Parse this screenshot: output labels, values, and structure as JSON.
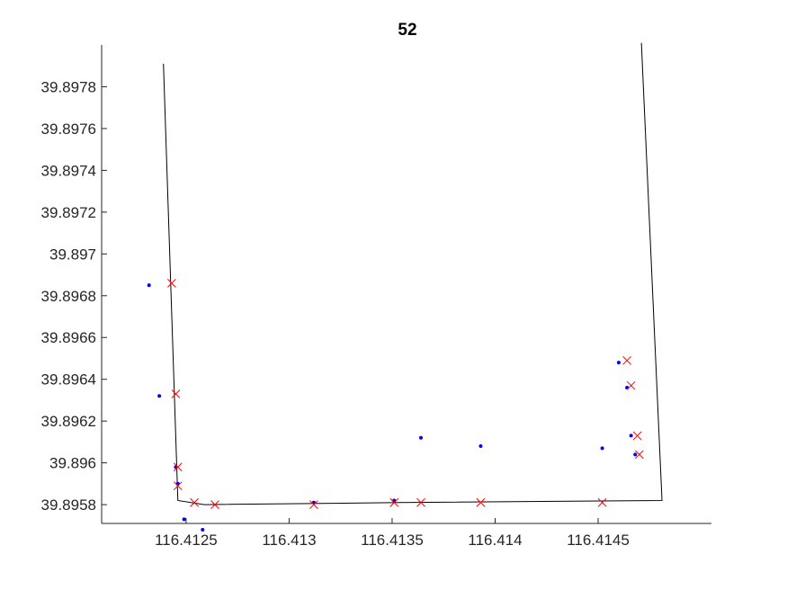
{
  "chart_data": {
    "type": "scatter",
    "title": "52",
    "xlabel": "",
    "ylabel": "",
    "xlim": [
      116.41209,
      116.41505
    ],
    "ylim": [
      39.89571,
      39.898
    ],
    "grid": false,
    "x_ticks": [
      116.4125,
      116.413,
      116.4135,
      116.414,
      116.4145
    ],
    "x_tick_labels": [
      "116.4125",
      "116.413",
      "116.4135",
      "116.414",
      "116.4145"
    ],
    "y_ticks": [
      39.8958,
      39.896,
      39.8962,
      39.8964,
      39.8966,
      39.8968,
      39.897,
      39.8972,
      39.8974,
      39.8976,
      39.8978
    ],
    "y_tick_labels": [
      "39.8958",
      "39.896",
      "39.8962",
      "39.8964",
      "39.8966",
      "39.8968",
      "39.897",
      "39.8972",
      "39.8974",
      "39.8976",
      "39.8978"
    ],
    "series": [
      {
        "kind": "line",
        "color": "#000000",
        "x": [
          116.41239,
          116.41246,
          116.41259,
          116.41354,
          116.41481,
          116.41471
        ],
        "y": [
          39.89791,
          39.89582,
          39.8958,
          39.89581,
          39.89582,
          39.89801
        ]
      },
      {
        "kind": "points",
        "color": "#0000ff",
        "marker": "dot",
        "x": [
          116.41232,
          116.41237,
          116.41245,
          116.41246,
          116.41246,
          116.41249,
          116.41258,
          116.41312,
          116.41351,
          116.41364,
          116.41393,
          116.41452,
          116.4146,
          116.41464,
          116.41466,
          116.41468
        ],
        "y": [
          39.89685,
          39.89632,
          39.89598,
          39.8959,
          39.8959,
          39.89573,
          39.89568,
          39.89581,
          39.89582,
          39.89612,
          39.89608,
          39.89607,
          39.89648,
          39.89636,
          39.89613,
          39.89604
        ]
      },
      {
        "kind": "points",
        "color": "#ff0000",
        "marker": "x",
        "x": [
          116.41243,
          116.41245,
          116.41246,
          116.41246,
          116.41254,
          116.41264,
          116.41312,
          116.41351,
          116.41364,
          116.41393,
          116.41452,
          116.41464,
          116.41466,
          116.41469,
          116.4147
        ],
        "y": [
          39.89686,
          39.89633,
          39.89598,
          39.89589,
          39.89581,
          39.8958,
          39.8958,
          39.89581,
          39.89581,
          39.89581,
          39.89581,
          39.89649,
          39.89637,
          39.89613,
          39.89604
        ]
      }
    ]
  }
}
